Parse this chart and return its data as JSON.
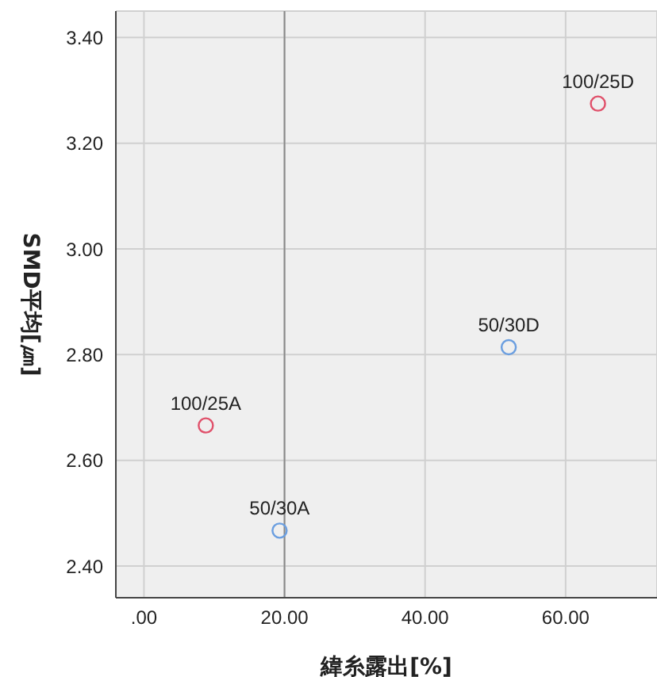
{
  "chart_data": {
    "type": "scatter",
    "xlabel": "緯糸露出[%]",
    "ylabel": "SMD平均[㎛]",
    "series": [
      {
        "color": "#e0506a",
        "x": [
          8.8,
          64.6
        ],
        "values": [
          2.666,
          3.275
        ]
      },
      {
        "color": "#6a9ee0",
        "x": [
          19.3,
          51.9
        ],
        "values": [
          2.467,
          2.814
        ]
      }
    ],
    "annotations": [
      {
        "text": "100/25A",
        "x": 8.8,
        "y": 2.666
      },
      {
        "text": "100/25D",
        "x": 64.6,
        "y": 3.275
      },
      {
        "text": "50/30A",
        "x": 19.3,
        "y": 2.467
      },
      {
        "text": "50/30D",
        "x": 51.9,
        "y": 2.814
      }
    ],
    "xlim": [
      -4,
      73
    ],
    "ylim": [
      2.34,
      3.45
    ],
    "xticks": [
      {
        "value": 0,
        "label": ".00"
      },
      {
        "value": 20,
        "label": "20.00"
      },
      {
        "value": 40,
        "label": "40.00"
      },
      {
        "value": 60,
        "label": "60.00"
      }
    ],
    "yticks": [
      {
        "value": 2.4,
        "label": "2.40"
      },
      {
        "value": 2.6,
        "label": "2.60"
      },
      {
        "value": 2.8,
        "label": "2.80"
      },
      {
        "value": 3.0,
        "label": "3.00"
      },
      {
        "value": 3.2,
        "label": "3.20"
      },
      {
        "value": 3.4,
        "label": "3.40"
      }
    ],
    "ref_lines": [
      {
        "axis": "x",
        "value": 20,
        "color": "#888888"
      }
    ],
    "grid": true,
    "marker": "circle",
    "legend": false
  }
}
